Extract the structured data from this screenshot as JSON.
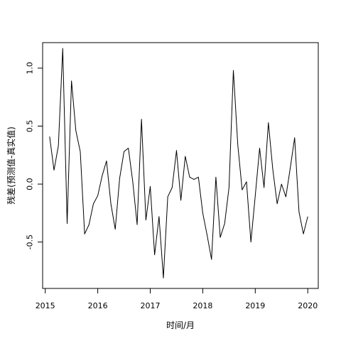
{
  "chart_data": {
    "type": "line",
    "xlabel": "时间/月",
    "ylabel": "残差(预测值-真实值)",
    "xlim": [
      2014.95,
      2020.2
    ],
    "ylim": [
      -0.9,
      1.22
    ],
    "xticks": [
      2015,
      2016,
      2017,
      2018,
      2019,
      2020
    ],
    "xtick_labels": [
      "2015",
      "2016",
      "2017",
      "2018",
      "2019",
      "2020"
    ],
    "yticks": [
      -0.5,
      0.0,
      0.5,
      1.0
    ],
    "ytick_labels": [
      "-0.5",
      "0.0",
      "0.5",
      "1.0"
    ],
    "grid": false,
    "legend": "none",
    "line_color": "#000000",
    "series": [
      {
        "x": [
          2015.083,
          2015.167,
          2015.25,
          2015.333,
          2015.417,
          2015.5,
          2015.583,
          2015.667,
          2015.75,
          2015.833,
          2015.917,
          2016.0,
          2016.083,
          2016.167,
          2016.25,
          2016.333,
          2016.417,
          2016.5,
          2016.583,
          2016.667,
          2016.75,
          2016.833,
          2016.917,
          2017.0,
          2017.083,
          2017.167,
          2017.25,
          2017.333,
          2017.417,
          2017.5,
          2017.583,
          2017.667,
          2017.75,
          2017.833,
          2017.917,
          2018.0,
          2018.083,
          2018.167,
          2018.25,
          2018.333,
          2018.417,
          2018.5,
          2018.583,
          2018.667,
          2018.75,
          2018.833,
          2018.917,
          2019.0,
          2019.083,
          2019.167,
          2019.25,
          2019.333,
          2019.417,
          2019.5,
          2019.583,
          2019.667,
          2019.75,
          2019.833,
          2019.917,
          2020.0
        ],
        "values": [
          0.41,
          0.12,
          0.33,
          1.17,
          -0.34,
          0.89,
          0.46,
          0.28,
          -0.43,
          -0.35,
          -0.17,
          -0.1,
          0.07,
          0.2,
          -0.17,
          -0.39,
          0.05,
          0.28,
          0.31,
          0.02,
          -0.35,
          0.56,
          -0.31,
          -0.02,
          -0.61,
          -0.28,
          -0.81,
          -0.11,
          -0.03,
          0.29,
          -0.14,
          0.24,
          0.06,
          0.04,
          0.06,
          -0.25,
          -0.44,
          -0.65,
          0.06,
          -0.46,
          -0.34,
          -0.03,
          0.98,
          0.34,
          -0.05,
          0.02,
          -0.5,
          -0.1,
          0.31,
          -0.03,
          0.53,
          0.13,
          -0.17,
          0.0,
          -0.11,
          0.14,
          0.4,
          -0.24,
          -0.43,
          -0.28
        ]
      }
    ]
  }
}
